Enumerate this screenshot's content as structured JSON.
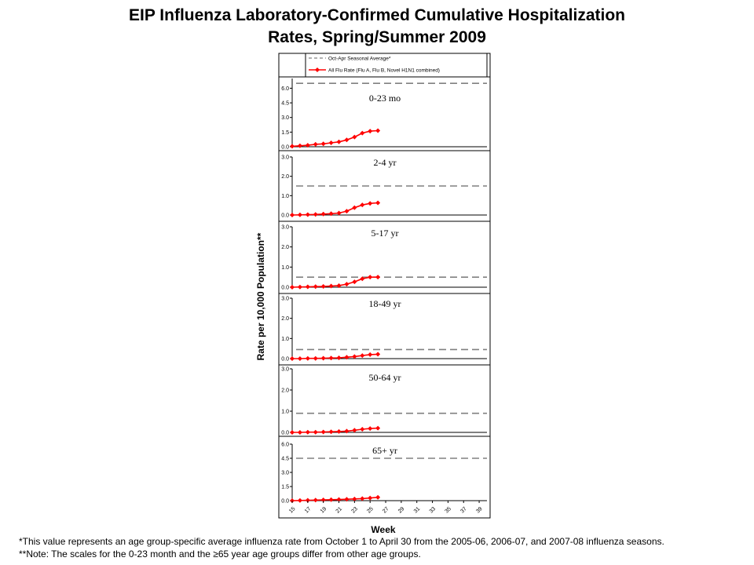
{
  "title_line1": "EIP Influenza Laboratory-Confirmed Cumulative Hospitalization",
  "title_line2": "Rates, Spring/Summer 2009",
  "footnotes": {
    "note1": "*This value represents an age group-specific average influenza rate from October 1 to April 30 from the 2005-06, 2006-07, and 2007-08 influenza seasons.",
    "note2": "**Note: The scales for the 0-23 month and the ≥65 year age groups differ from other age groups."
  },
  "colors": {
    "series": "#ff0000",
    "average": "#808080",
    "axis": "#000000"
  },
  "chart_data": {
    "type": "line",
    "title": "EIP Influenza Laboratory-Confirmed Cumulative Hospitalization Rates, Spring/Summer 2009",
    "xlabel": "Week",
    "ylabel": "Rate per 10,000 Population**",
    "x_ticks": [
      "15",
      "17",
      "19",
      "21",
      "23",
      "25",
      "27",
      "29",
      "31",
      "33",
      "35",
      "37",
      "39"
    ],
    "x_range": [
      15,
      40
    ],
    "legend": {
      "placement": "top",
      "entries": [
        "Oct-Apr Seasonal Average*",
        "All Flu Rate (Flu A, Flu B, Novel H1N1 combined)"
      ]
    },
    "panels": [
      {
        "label": "0-23 mo",
        "ylim": [
          0,
          7
        ],
        "yticks": [
          "0.0",
          "1.5",
          "3.0",
          "4.5",
          "6.0"
        ],
        "ytick_values": [
          0,
          1.5,
          3.0,
          4.5,
          6.0
        ],
        "seasonal_average": 6.5,
        "series": [
          {
            "name": "All Flu Rate (Flu A, Flu B, Novel H1N1 combined)",
            "x": [
              15,
              16,
              17,
              18,
              19,
              20,
              21,
              22,
              23,
              24,
              25,
              26
            ],
            "values": [
              0.05,
              0.1,
              0.15,
              0.25,
              0.3,
              0.4,
              0.5,
              0.7,
              1.0,
              1.4,
              1.6,
              1.65
            ]
          }
        ]
      },
      {
        "label": "2-4 yr",
        "ylim": [
          0,
          3
        ],
        "yticks": [
          "0.0",
          "1.0",
          "2.0",
          "3.0"
        ],
        "ytick_values": [
          0,
          1.0,
          2.0,
          3.0
        ],
        "seasonal_average": 1.5,
        "series": [
          {
            "name": "All Flu Rate (Flu A, Flu B, Novel H1N1 combined)",
            "x": [
              15,
              16,
              17,
              18,
              19,
              20,
              21,
              22,
              23,
              24,
              25,
              26
            ],
            "values": [
              0.0,
              0.01,
              0.02,
              0.03,
              0.05,
              0.07,
              0.1,
              0.2,
              0.38,
              0.52,
              0.6,
              0.63
            ]
          }
        ]
      },
      {
        "label": "5-17 yr",
        "ylim": [
          0,
          3
        ],
        "yticks": [
          "0.0",
          "1.0",
          "2.0",
          "3.0"
        ],
        "ytick_values": [
          0,
          1.0,
          2.0,
          3.0
        ],
        "seasonal_average": 0.5,
        "series": [
          {
            "name": "All Flu Rate (Flu A, Flu B, Novel H1N1 combined)",
            "x": [
              15,
              16,
              17,
              18,
              19,
              20,
              21,
              22,
              23,
              24,
              25,
              26
            ],
            "values": [
              0.0,
              0.01,
              0.02,
              0.03,
              0.04,
              0.06,
              0.08,
              0.15,
              0.27,
              0.42,
              0.5,
              0.5
            ]
          }
        ]
      },
      {
        "label": "18-49 yr",
        "ylim": [
          0,
          3
        ],
        "yticks": [
          "0.0",
          "1.0",
          "2.0",
          "3.0"
        ],
        "ytick_values": [
          0,
          1.0,
          2.0,
          3.0
        ],
        "seasonal_average": 0.45,
        "series": [
          {
            "name": "All Flu Rate (Flu A, Flu B, Novel H1N1 combined)",
            "x": [
              15,
              16,
              17,
              18,
              19,
              20,
              21,
              22,
              23,
              24,
              25,
              26
            ],
            "values": [
              0.0,
              0.0,
              0.01,
              0.01,
              0.02,
              0.03,
              0.04,
              0.07,
              0.1,
              0.15,
              0.2,
              0.22
            ]
          }
        ]
      },
      {
        "label": "50-64 yr",
        "ylim": [
          0,
          3
        ],
        "yticks": [
          "0.0",
          "1.0",
          "2.0",
          "3.0"
        ],
        "ytick_values": [
          0,
          1.0,
          2.0,
          3.0
        ],
        "seasonal_average": 0.9,
        "series": [
          {
            "name": "All Flu Rate (Flu A, Flu B, Novel H1N1 combined)",
            "x": [
              15,
              16,
              17,
              18,
              19,
              20,
              21,
              22,
              23,
              24,
              25,
              26
            ],
            "values": [
              0.0,
              0.0,
              0.01,
              0.01,
              0.02,
              0.03,
              0.04,
              0.06,
              0.1,
              0.15,
              0.18,
              0.2
            ]
          }
        ]
      },
      {
        "label": "65+ yr",
        "ylim": [
          0,
          6
        ],
        "yticks": [
          "0.0",
          "1.5",
          "3.0",
          "4.5",
          "6.0"
        ],
        "ytick_values": [
          0,
          1.5,
          3.0,
          4.5,
          6.0
        ],
        "seasonal_average": 4.5,
        "series": [
          {
            "name": "All Flu Rate (Flu A, Flu B, Novel H1N1 combined)",
            "x": [
              15,
              16,
              17,
              18,
              19,
              20,
              21,
              22,
              23,
              24,
              25,
              26
            ],
            "values": [
              0.0,
              0.02,
              0.04,
              0.06,
              0.08,
              0.1,
              0.12,
              0.15,
              0.18,
              0.22,
              0.28,
              0.35
            ]
          }
        ]
      }
    ]
  }
}
